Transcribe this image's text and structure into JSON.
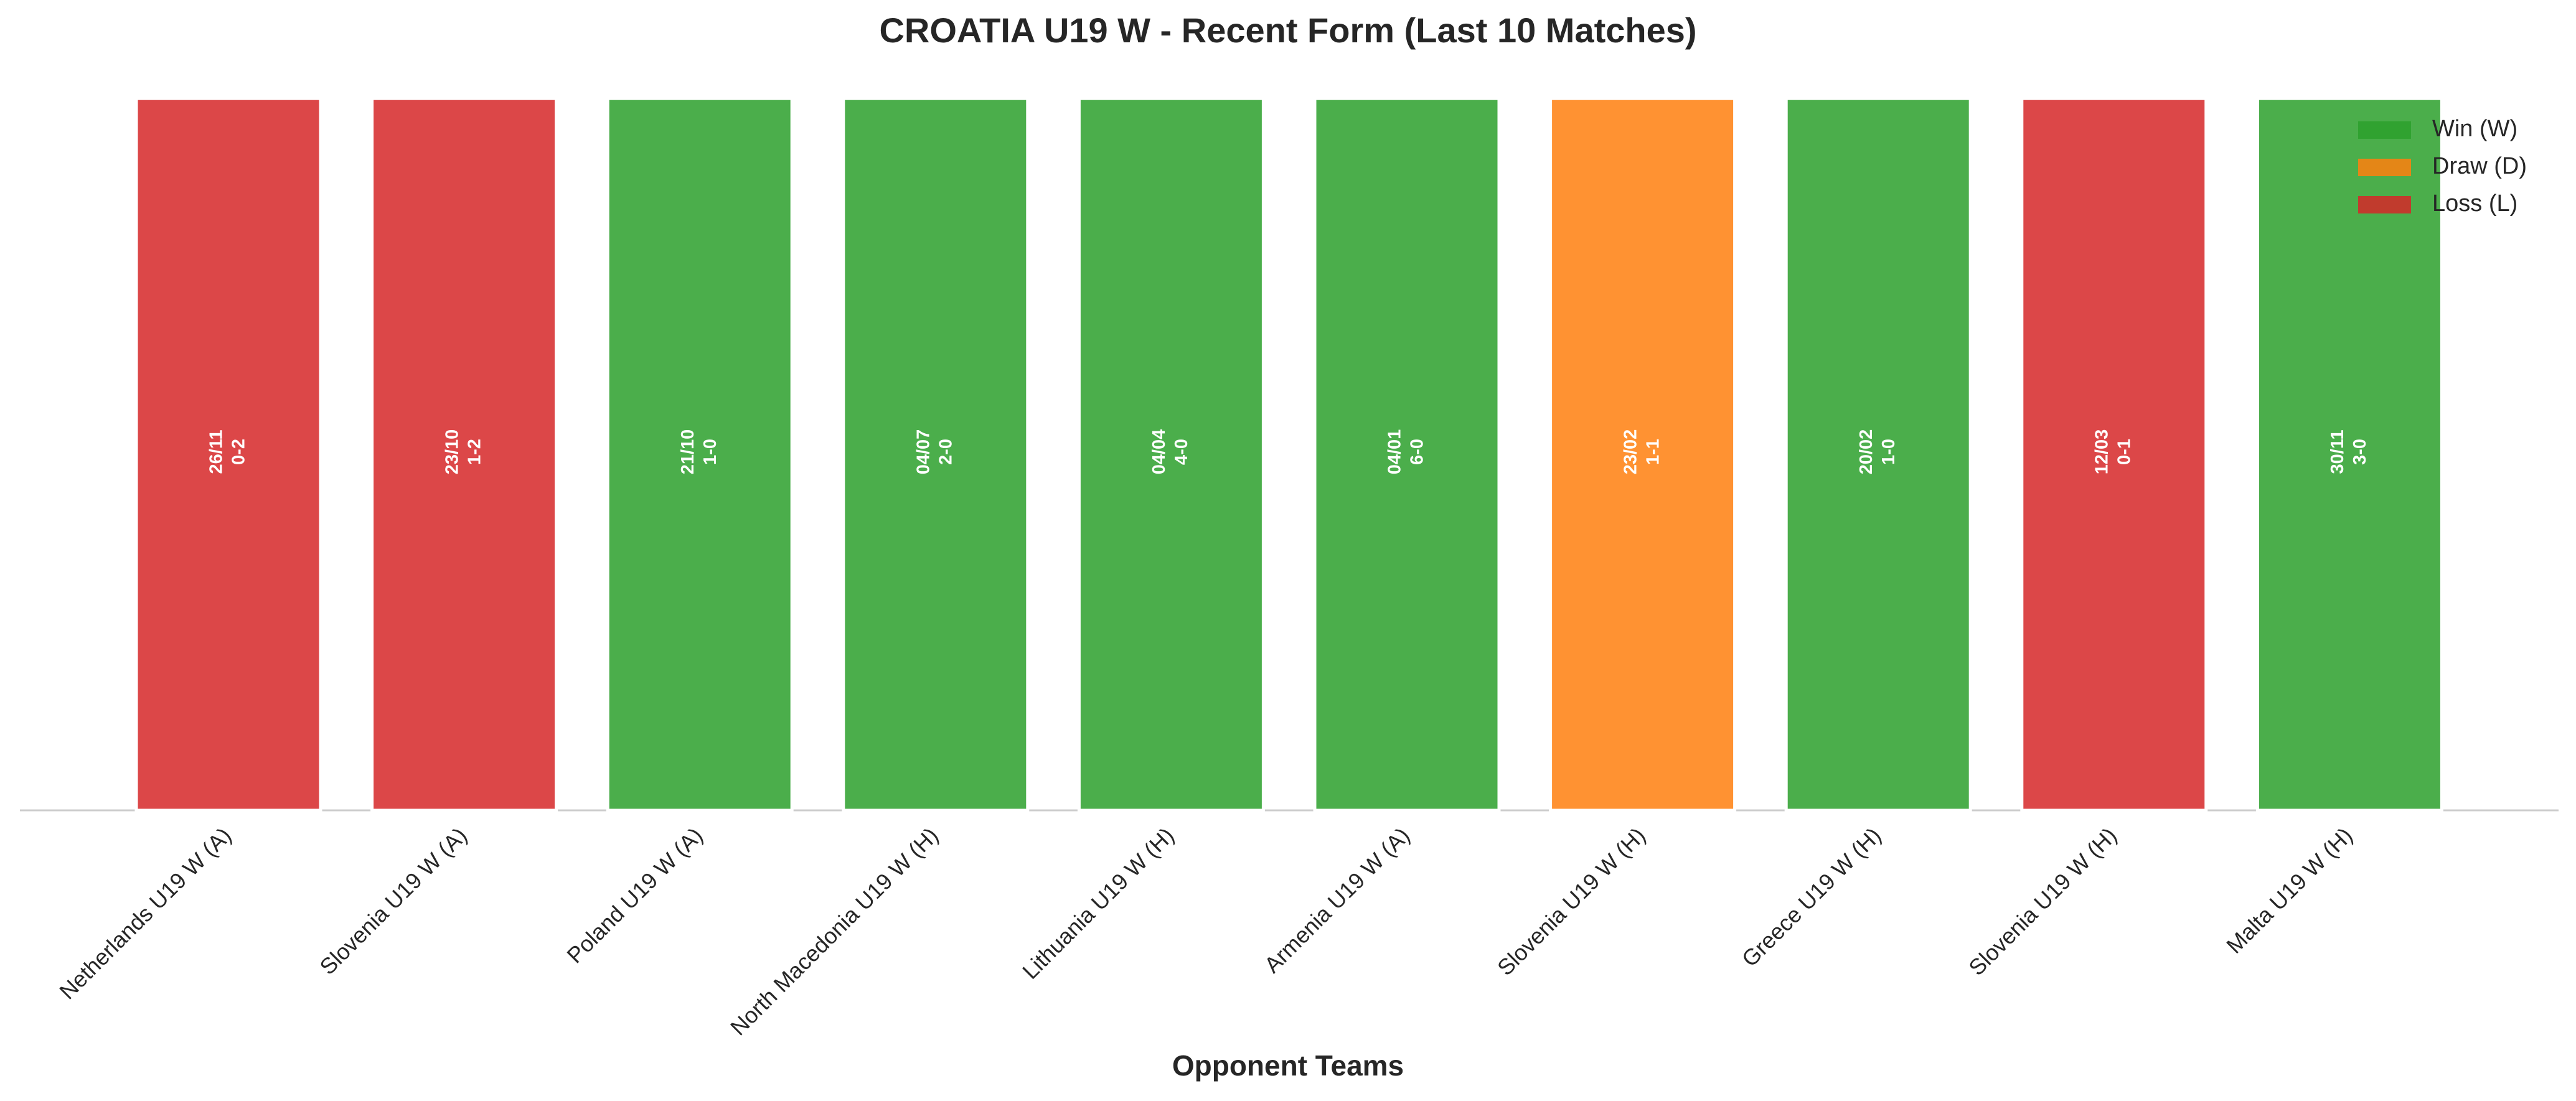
{
  "chart_data": {
    "type": "bar",
    "title": "CROATIA U19 W - Recent Form (Last 10 Matches)",
    "x_label": "Opponent Teams",
    "categories": [
      "Netherlands U19 W (A)",
      "Slovenia U19 W (A)",
      "Poland U19 W (A)",
      "North Macedonia U19 W (H)",
      "Lithuania U19 W (H)",
      "Armenia U19 W (A)",
      "Slovenia U19 W (H)",
      "Greece U19 W (H)",
      "Slovenia U19 W (H)",
      "Malta U19 W (H)"
    ],
    "dates": [
      "26/11",
      "23/10",
      "21/10",
      "04/07",
      "04/04",
      "04/01",
      "23/02",
      "20/02",
      "12/03",
      "30/11"
    ],
    "scores": [
      "0-2",
      "1-2",
      "1-0",
      "2-0",
      "4-0",
      "6-0",
      "1-1",
      "1-0",
      "0-1",
      "3-0"
    ],
    "series": [
      {
        "name": "Win (W)",
        "color": "#2ca02c",
        "values": [
          null,
          null,
          1,
          1,
          1,
          1,
          null,
          1,
          null,
          1
        ]
      },
      {
        "name": "Draw (D)",
        "color": "#ff7f0e",
        "values": [
          null,
          null,
          null,
          null,
          null,
          null,
          1,
          null,
          null,
          null
        ]
      },
      {
        "name": "Loss (L)",
        "color": "#d62728",
        "values": [
          1,
          1,
          null,
          null,
          null,
          null,
          null,
          null,
          1,
          null
        ]
      }
    ],
    "ylim": [
      0,
      1.05
    ],
    "legend": "upper right"
  }
}
